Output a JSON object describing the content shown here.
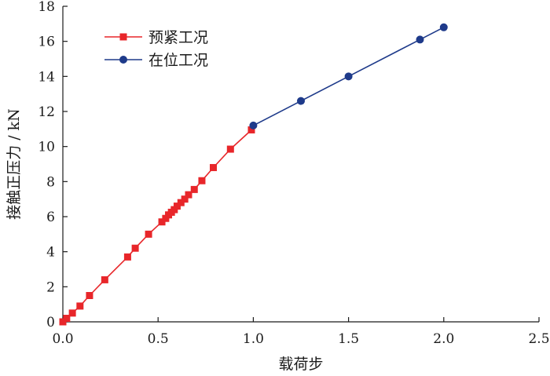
{
  "chart_data": {
    "type": "line",
    "xlabel": "载荷步",
    "ylabel": "接触正压力 / kN",
    "xlim": [
      0,
      2.5
    ],
    "ylim": [
      0,
      18
    ],
    "xticks": [
      0.0,
      0.5,
      1.0,
      1.5,
      2.0,
      2.5
    ],
    "xtick_labels": [
      "0.0",
      "0.5",
      "1.0",
      "1.5",
      "2.0",
      "2.5"
    ],
    "yticks": [
      0,
      2,
      4,
      6,
      8,
      10,
      12,
      14,
      16,
      18
    ],
    "ytick_labels": [
      "0",
      "2",
      "4",
      "6",
      "8",
      "10",
      "12",
      "14",
      "16",
      "18"
    ],
    "grid": false,
    "legend": "top-left",
    "series": [
      {
        "name": "预紧工况",
        "color": "#e8262a",
        "marker": "square",
        "points": [
          [
            0.0,
            0.0
          ],
          [
            0.02,
            0.2
          ],
          [
            0.05,
            0.5
          ],
          [
            0.09,
            0.9
          ],
          [
            0.14,
            1.5
          ],
          [
            0.22,
            2.4
          ],
          [
            0.34,
            3.7
          ],
          [
            0.38,
            4.2
          ],
          [
            0.45,
            5.0
          ],
          [
            0.52,
            5.7
          ],
          [
            0.54,
            5.9
          ],
          [
            0.555,
            6.1
          ],
          [
            0.57,
            6.25
          ],
          [
            0.585,
            6.4
          ],
          [
            0.6,
            6.6
          ],
          [
            0.62,
            6.8
          ],
          [
            0.64,
            7.0
          ],
          [
            0.66,
            7.25
          ],
          [
            0.69,
            7.55
          ],
          [
            0.73,
            8.05
          ],
          [
            0.79,
            8.8
          ],
          [
            0.88,
            9.85
          ],
          [
            0.99,
            10.95
          ]
        ]
      },
      {
        "name": "在位工况",
        "color": "#1e3a8a",
        "marker": "circle",
        "points": [
          [
            1.0,
            11.2
          ],
          [
            1.25,
            12.6
          ],
          [
            1.5,
            14.0
          ],
          [
            1.875,
            16.1
          ],
          [
            2.0,
            16.8
          ]
        ]
      }
    ]
  }
}
